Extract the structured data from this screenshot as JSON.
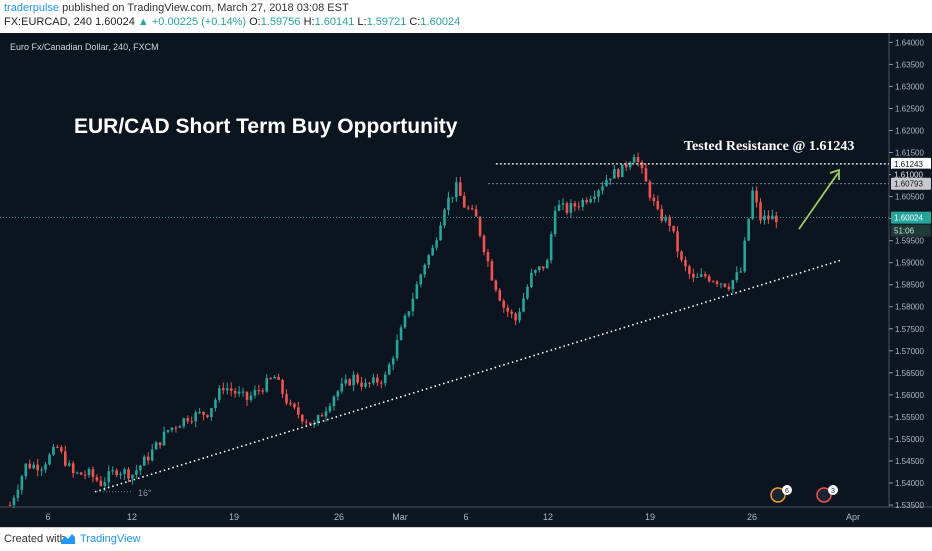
{
  "header": {
    "author": "traderpulse",
    "published_text": "published on TradingView.com, March 27, 2018 03:08 EST",
    "symbol": "FX:EURCAD, 240",
    "last": "1.60024",
    "change": "+0.00225 (+0.14%)",
    "o_label": "O:",
    "o_value": "1.59756",
    "h_label": "H:",
    "h_value": "1.60141",
    "l_label": "L:",
    "l_value": "1.59721",
    "c_label": "C:",
    "c_value": "1.60024"
  },
  "footer": {
    "created_with": "Created with",
    "brand": "TradingView"
  },
  "colors": {
    "background": "#0c1420",
    "up": "#26a69a",
    "down": "#ef5350",
    "accent": "#2196f3",
    "arrow": "#9ccc65"
  },
  "chart_data": {
    "type": "candlestick",
    "instrument_label": "Euro Fx/Canadian Dollar, 240, FXCM",
    "title": "EUR/CAD Short Term Buy Opportunity",
    "annotation": "Tested Resistance @ 1.61243",
    "angle_label": "16°",
    "y_ticks": [
      "1.64000",
      "1.63500",
      "1.63000",
      "1.62500",
      "1.62000",
      "1.61500",
      "1.61000",
      "1.60500",
      "1.60000",
      "1.59500",
      "1.59000",
      "1.58500",
      "1.58000",
      "1.57500",
      "1.57000",
      "1.56500",
      "1.56000",
      "1.55500",
      "1.55000",
      "1.54500",
      "1.54000",
      "1.53500"
    ],
    "y_range": [
      1.535,
      1.641
    ],
    "x_ticks": [
      "6",
      "12",
      "19",
      "26",
      "Mar",
      "6",
      "12",
      "19",
      "26",
      "Apr"
    ],
    "price_labels": {
      "resistance": "1.61243",
      "level2": "1.61000",
      "level3": "1.60793",
      "current": "1.60024",
      "countdown": "51:06"
    },
    "badges": [
      "6",
      "3"
    ],
    "resistance_level": 1.61243,
    "level_2": 1.60793,
    "current_price": 1.60024,
    "trendline": [
      [
        0,
        1.538
      ],
      [
        140,
        1.5905
      ]
    ],
    "close_path": [
      [
        0,
        1.535
      ],
      [
        4,
        1.544
      ],
      [
        8,
        1.544
      ],
      [
        12,
        1.548
      ],
      [
        16,
        1.542
      ],
      [
        20,
        1.542
      ],
      [
        23,
        1.54
      ],
      [
        27,
        1.543
      ],
      [
        31,
        1.542
      ],
      [
        35,
        1.546
      ],
      [
        40,
        1.552
      ],
      [
        45,
        1.555
      ],
      [
        50,
        1.556
      ],
      [
        54,
        1.562
      ],
      [
        60,
        1.559
      ],
      [
        67,
        1.564
      ],
      [
        71,
        1.557
      ],
      [
        77,
        1.553
      ],
      [
        82,
        1.56
      ],
      [
        87,
        1.564
      ],
      [
        90,
        1.562
      ],
      [
        95,
        1.564
      ],
      [
        100,
        1.577
      ],
      [
        105,
        1.59
      ],
      [
        107,
        1.593
      ],
      [
        110,
        1.603
      ],
      [
        113,
        1.607
      ],
      [
        115,
        1.603
      ],
      [
        118,
        1.6
      ],
      [
        122,
        1.587
      ],
      [
        125,
        1.58
      ],
      [
        128,
        1.577
      ],
      [
        132,
        1.587
      ],
      [
        136,
        1.59
      ],
      [
        138,
        1.603
      ],
      [
        141,
        1.602
      ],
      [
        145,
        1.604
      ],
      [
        149,
        1.607
      ],
      [
        152,
        1.61
      ],
      [
        155,
        1.611
      ],
      [
        158,
        1.615
      ],
      [
        161,
        1.608
      ],
      [
        164,
        1.601
      ],
      [
        167,
        1.599
      ],
      [
        170,
        1.59
      ],
      [
        173,
        1.586
      ],
      [
        176,
        1.587
      ],
      [
        179,
        1.586
      ],
      [
        182,
        1.585
      ],
      [
        185,
        1.588
      ],
      [
        188,
        1.606
      ],
      [
        190,
        1.6
      ],
      [
        194,
        1.6002
      ]
    ]
  }
}
